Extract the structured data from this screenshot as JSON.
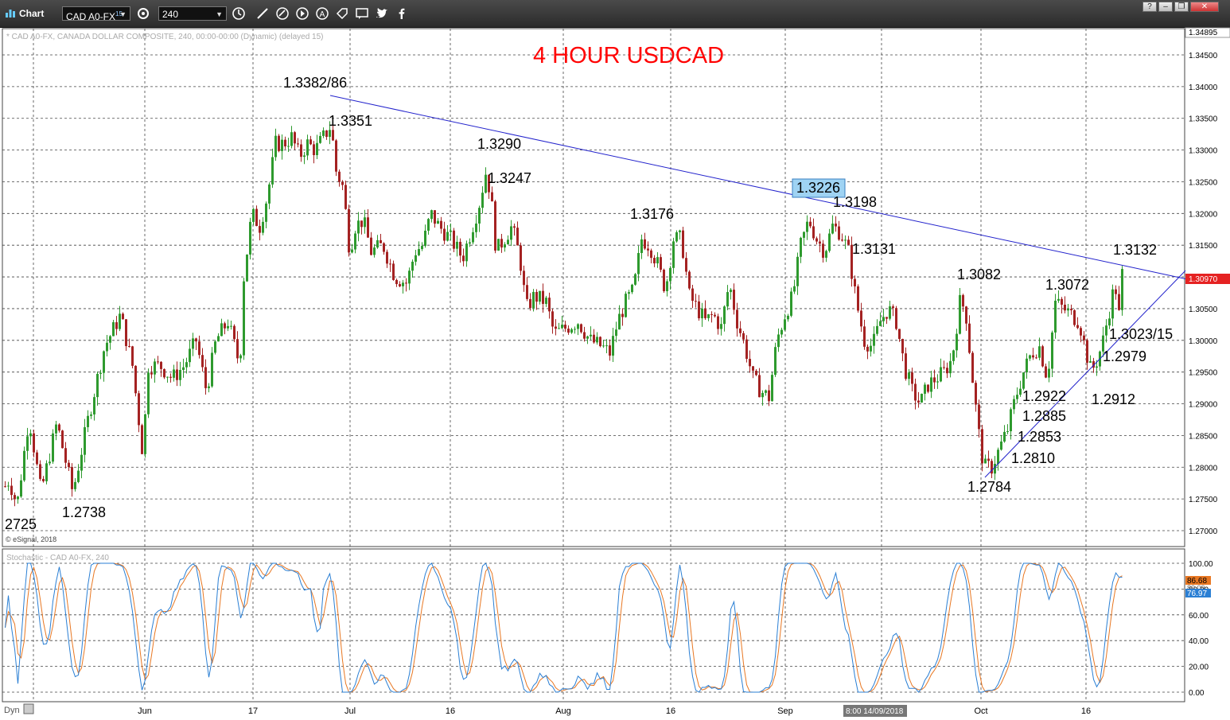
{
  "window": {
    "title": "Chart",
    "symbol": "CAD A0-FX",
    "symbol_superscript": "15",
    "interval": "240",
    "buttons": [
      "help",
      "minimize",
      "maximize",
      "close"
    ]
  },
  "chart_header": "* CAD A0-FX, CANADA DOLLAR COMPOSITE, 240, 00:00-00:00 (Dynamic) (delayed 15)",
  "chart_title": "4 HOUR USDCAD",
  "copyright": "© eSignal, 2018",
  "price_axis": {
    "ticks": [
      "1.34500",
      "1.34000",
      "1.33500",
      "1.33000",
      "1.32500",
      "1.32000",
      "1.31500",
      "1.31000",
      "1.30500",
      "1.30000",
      "1.29500",
      "1.29000",
      "1.28500",
      "1.28000",
      "1.27500",
      "1.27000"
    ],
    "top_marker": "1.34895",
    "current_price": "1.30970"
  },
  "time_axis": {
    "labels": [
      "Jun",
      "17",
      "Jul",
      "16",
      "Aug",
      "16",
      "Sep",
      "Oct",
      "16"
    ],
    "cursor_label": "8:00 14/09/2018"
  },
  "annotations": [
    {
      "text": "1.3382/86"
    },
    {
      "text": "1.3351"
    },
    {
      "text": "1.3290"
    },
    {
      "text": "1.3247"
    },
    {
      "text": "1.3176"
    },
    {
      "text": "1.3226",
      "highlight": true
    },
    {
      "text": "1.3198"
    },
    {
      "text": "1.3131"
    },
    {
      "text": "1.3082"
    },
    {
      "text": "1.3072"
    },
    {
      "text": "1.3132"
    },
    {
      "text": "1.3023/15"
    },
    {
      "text": "1.2979"
    },
    {
      "text": "1.2912"
    },
    {
      "text": "1.2922"
    },
    {
      "text": "1.2885"
    },
    {
      "text": "1.2853"
    },
    {
      "text": "1.2810"
    },
    {
      "text": "1.2784"
    },
    {
      "text": "2725"
    },
    {
      "text": "1.2738"
    }
  ],
  "stochastic": {
    "label": "Stochastic - CAD A0-FX, 240",
    "ticks": [
      "100.00",
      "80.00",
      "60.00",
      "40.00",
      "20.00",
      "0.00"
    ],
    "k_value": "86.68",
    "d_value": "76.97",
    "hidden_value": "80.00"
  },
  "bottom": {
    "dyn_label": "Dyn"
  },
  "colors": {
    "up_candle": "#2e9a2e",
    "down_candle": "#a42222",
    "trendline": "#2222cc",
    "title_red": "#ff0000",
    "current_price_bg": "#e52222",
    "k_line": "#2a7fd4",
    "d_line": "#e87722",
    "highlight_box": "#9fd3f3"
  },
  "chart_data": {
    "type": "candlestick",
    "title": "4 HOUR USDCAD",
    "instrument": "CAD A0-FX, CANADA DOLLAR COMPOSITE",
    "timeframe": "240",
    "ylim": [
      1.27,
      1.349
    ],
    "key_levels": [
      {
        "label": "1.2725",
        "value": 1.2725
      },
      {
        "label": "1.2738",
        "value": 1.2738
      },
      {
        "label": "1.3382/86",
        "value": 1.3386
      },
      {
        "label": "1.3351",
        "value": 1.3351
      },
      {
        "label": "1.3290",
        "value": 1.329
      },
      {
        "label": "1.3247",
        "value": 1.3247
      },
      {
        "label": "1.3176",
        "value": 1.3176
      },
      {
        "label": "1.3226",
        "value": 1.3226
      },
      {
        "label": "1.3198",
        "value": 1.3198
      },
      {
        "label": "1.3131",
        "value": 1.3131
      },
      {
        "label": "1.3082",
        "value": 1.3082
      },
      {
        "label": "1.2784",
        "value": 1.2784
      },
      {
        "label": "1.2810",
        "value": 1.281
      },
      {
        "label": "1.2853",
        "value": 1.2853
      },
      {
        "label": "1.2885",
        "value": 1.2885
      },
      {
        "label": "1.2922",
        "value": 1.2922
      },
      {
        "label": "1.3072",
        "value": 1.3072
      },
      {
        "label": "1.2912",
        "value": 1.2912
      },
      {
        "label": "1.2979",
        "value": 1.2979
      },
      {
        "label": "1.3023/15",
        "value": 1.3019
      },
      {
        "label": "1.3132",
        "value": 1.3132
      }
    ],
    "price_path": [
      [
        0,
        1.276
      ],
      [
        10,
        1.278
      ],
      [
        20,
        1.274
      ],
      [
        35,
        1.288
      ],
      [
        50,
        1.276
      ],
      [
        70,
        1.287
      ],
      [
        90,
        1.276
      ],
      [
        110,
        1.288
      ],
      [
        130,
        1.299
      ],
      [
        150,
        1.304
      ],
      [
        165,
        1.296
      ],
      [
        178,
        1.282
      ],
      [
        185,
        1.296
      ],
      [
        200,
        1.296
      ],
      [
        215,
        1.294
      ],
      [
        230,
        1.296
      ],
      [
        245,
        1.3
      ],
      [
        258,
        1.292
      ],
      [
        270,
        1.3
      ],
      [
        285,
        1.303
      ],
      [
        300,
        1.296
      ],
      [
        305,
        1.31
      ],
      [
        315,
        1.32
      ],
      [
        325,
        1.318
      ],
      [
        335,
        1.323
      ],
      [
        345,
        1.331
      ],
      [
        355,
        1.331
      ],
      [
        365,
        1.332
      ],
      [
        375,
        1.329
      ],
      [
        385,
        1.331
      ],
      [
        395,
        1.33
      ],
      [
        405,
        1.332
      ],
      [
        415,
        1.334
      ],
      [
        420,
        1.327
      ],
      [
        430,
        1.324
      ],
      [
        438,
        1.314
      ],
      [
        445,
        1.318
      ],
      [
        455,
        1.319
      ],
      [
        465,
        1.314
      ],
      [
        480,
        1.315
      ],
      [
        495,
        1.31
      ],
      [
        510,
        1.309
      ],
      [
        520,
        1.314
      ],
      [
        530,
        1.315
      ],
      [
        540,
        1.32
      ],
      [
        550,
        1.318
      ],
      [
        565,
        1.316
      ],
      [
        580,
        1.313
      ],
      [
        590,
        1.317
      ],
      [
        600,
        1.321
      ],
      [
        610,
        1.327
      ],
      [
        618,
        1.32
      ],
      [
        622,
        1.314
      ],
      [
        632,
        1.316
      ],
      [
        642,
        1.318
      ],
      [
        652,
        1.313
      ],
      [
        660,
        1.305
      ],
      [
        670,
        1.307
      ],
      [
        685,
        1.306
      ],
      [
        695,
        1.301
      ],
      [
        710,
        1.302
      ],
      [
        725,
        1.303
      ],
      [
        740,
        1.3
      ],
      [
        755,
        1.299
      ],
      [
        765,
        1.298
      ],
      [
        775,
        1.303
      ],
      [
        785,
        1.306
      ],
      [
        795,
        1.308
      ],
      [
        805,
        1.316
      ],
      [
        815,
        1.315
      ],
      [
        825,
        1.312
      ],
      [
        835,
        1.308
      ],
      [
        845,
        1.316
      ],
      [
        855,
        1.316
      ],
      [
        865,
        1.307
      ],
      [
        875,
        1.305
      ],
      [
        885,
        1.303
      ],
      [
        895,
        1.304
      ],
      [
        905,
        1.302
      ],
      [
        915,
        1.309
      ],
      [
        925,
        1.303
      ],
      [
        935,
        1.299
      ],
      [
        945,
        1.294
      ],
      [
        955,
        1.292
      ],
      [
        965,
        1.291
      ],
      [
        975,
        1.3
      ],
      [
        985,
        1.304
      ],
      [
        995,
        1.307
      ],
      [
        1005,
        1.315
      ],
      [
        1015,
        1.319
      ],
      [
        1025,
        1.316
      ],
      [
        1035,
        1.314
      ],
      [
        1045,
        1.318
      ],
      [
        1055,
        1.317
      ],
      [
        1065,
        1.314
      ],
      [
        1075,
        1.306
      ],
      [
        1085,
        1.3
      ],
      [
        1095,
        1.299
      ],
      [
        1105,
        1.303
      ],
      [
        1115,
        1.305
      ],
      [
        1125,
        1.303
      ],
      [
        1135,
        1.296
      ],
      [
        1145,
        1.292
      ],
      [
        1155,
        1.29
      ],
      [
        1165,
        1.293
      ],
      [
        1175,
        1.294
      ],
      [
        1185,
        1.295
      ],
      [
        1195,
        1.297
      ],
      [
        1205,
        1.306
      ],
      [
        1212,
        1.305
      ],
      [
        1220,
        1.295
      ],
      [
        1228,
        1.286
      ],
      [
        1235,
        1.28
      ],
      [
        1245,
        1.28
      ],
      [
        1255,
        1.283
      ],
      [
        1265,
        1.286
      ],
      [
        1275,
        1.291
      ],
      [
        1285,
        1.295
      ],
      [
        1295,
        1.298
      ],
      [
        1305,
        1.299
      ],
      [
        1315,
        1.294
      ],
      [
        1325,
        1.306
      ],
      [
        1335,
        1.305
      ],
      [
        1345,
        1.304
      ],
      [
        1355,
        1.303
      ],
      [
        1362,
        1.299
      ],
      [
        1370,
        1.295
      ],
      [
        1378,
        1.297
      ],
      [
        1385,
        1.3
      ],
      [
        1395,
        1.306
      ],
      [
        1400,
        1.309
      ],
      [
        1405,
        1.304
      ],
      [
        1410,
        1.312
      ]
    ],
    "trendlines": [
      {
        "from": [
          415,
          1.3386
        ],
        "to": [
          1490,
          1.3097
        ]
      },
      {
        "from": [
          1238,
          1.2784
        ],
        "to": [
          1490,
          1.311
        ]
      }
    ],
    "stochastic": {
      "k": 86.68,
      "d": 76.97,
      "ylim": [
        0,
        100
      ]
    }
  }
}
